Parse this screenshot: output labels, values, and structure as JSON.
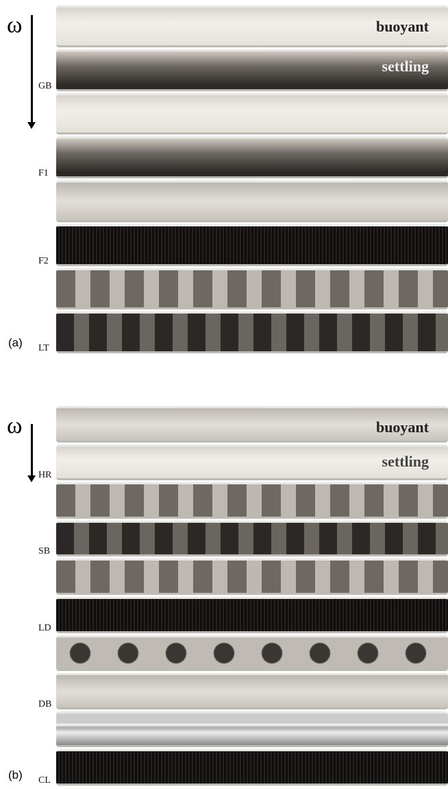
{
  "panels": [
    {
      "label": "(a)",
      "omega": "ω",
      "buoyant": "buoyant",
      "settling": "settling",
      "rows": [
        {
          "label": "GB"
        },
        {
          "label": "F1"
        },
        {
          "label": "F2"
        },
        {
          "label": "LT"
        }
      ]
    },
    {
      "label": "(b)",
      "omega": "ω",
      "buoyant": "buoyant",
      "settling": "settling",
      "rows": [
        {
          "label": "HR"
        },
        {
          "label": "SB"
        },
        {
          "label": "LD"
        },
        {
          "label": "DB"
        },
        {
          "label": "CL"
        }
      ]
    }
  ]
}
